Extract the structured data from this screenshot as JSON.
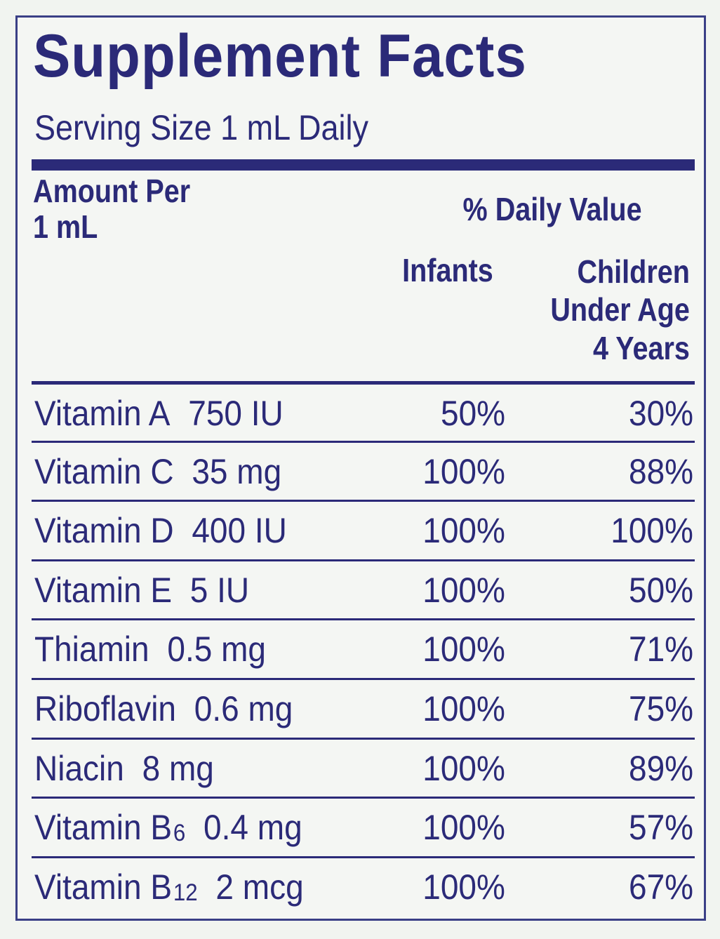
{
  "label": {
    "title": "Supplement Facts",
    "serving": "Serving Size 1 mL Daily",
    "header": {
      "amount_per_line1": "Amount Per",
      "amount_per_line2": "1 mL",
      "daily_value": "% Daily Value",
      "infants": "Infants",
      "children_line1": "Children",
      "children_line2": "Under Age",
      "children_line3": "4 Years"
    },
    "rows": [
      {
        "name": "Vitamin A",
        "sub": "",
        "amount": "750 IU",
        "infants": "50%",
        "children": "30%"
      },
      {
        "name": "Vitamin C",
        "sub": "",
        "amount": "35 mg",
        "infants": "100%",
        "children": "88%"
      },
      {
        "name": "Vitamin D",
        "sub": "",
        "amount": "400 IU",
        "infants": "100%",
        "children": "100%"
      },
      {
        "name": "Vitamin E",
        "sub": "",
        "amount": "5 IU",
        "infants": "100%",
        "children": "50%"
      },
      {
        "name": "Thiamin",
        "sub": "",
        "amount": "0.5 mg",
        "infants": "100%",
        "children": "71%"
      },
      {
        "name": "Riboflavin",
        "sub": "",
        "amount": "0.6 mg",
        "infants": "100%",
        "children": "75%"
      },
      {
        "name": "Niacin",
        "sub": "",
        "amount": "8 mg",
        "infants": "100%",
        "children": "89%"
      },
      {
        "name": "Vitamin B",
        "sub": "6",
        "amount": "0.4 mg",
        "infants": "100%",
        "children": "57%"
      },
      {
        "name": "Vitamin B",
        "sub": "12",
        "amount": "2 mcg",
        "infants": "100%",
        "children": "67%"
      }
    ]
  },
  "colors": {
    "ink": "#2b2a78",
    "background": "#f4f6f3"
  }
}
